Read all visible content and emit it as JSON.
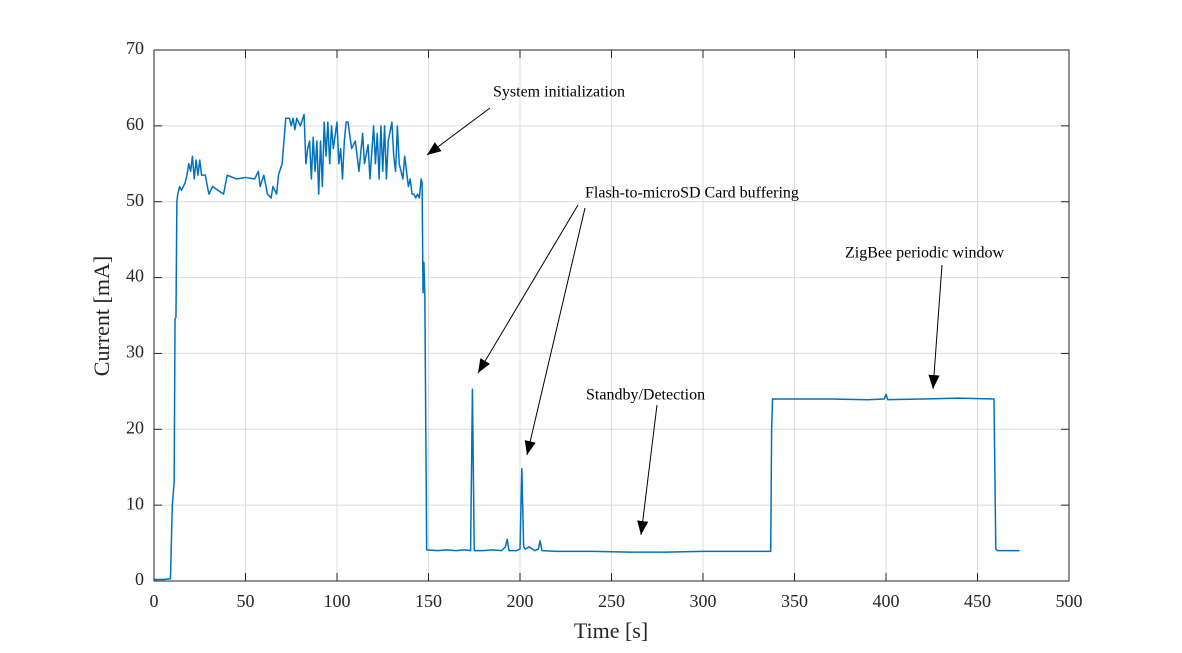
{
  "chart_data": {
    "type": "line",
    "xlabel": "Time [s]",
    "ylabel": "Current [mA]",
    "color": "#0072bd",
    "grid": true,
    "xlim": [
      0,
      500
    ],
    "xticks": [
      0,
      50,
      100,
      150,
      200,
      250,
      300,
      350,
      400,
      450,
      500
    ],
    "ylim": [
      0,
      70
    ],
    "yticks": [
      0,
      10,
      20,
      30,
      40,
      50,
      60,
      70
    ],
    "annotations": [
      "System initialization",
      "Flash-to-microSD Card buffering",
      "Standby/Detection",
      "ZigBee periodic window"
    ],
    "x": [
      0,
      5,
      9,
      10,
      11,
      11.5,
      12,
      12.5,
      13,
      14,
      15,
      17,
      18,
      19,
      20,
      21,
      22,
      23,
      24,
      25,
      26,
      28,
      30,
      32,
      35,
      38,
      40,
      45,
      50,
      55,
      57,
      58,
      60,
      62,
      64,
      65,
      67,
      68,
      70,
      72,
      74,
      75,
      76,
      77,
      78,
      80,
      82,
      83,
      84,
      85,
      86,
      87,
      88,
      89,
      90,
      91,
      92,
      93,
      94,
      95,
      96,
      97,
      98,
      100,
      101,
      102,
      103,
      104,
      105,
      106,
      108,
      110,
      112,
      114,
      115,
      117,
      118,
      120,
      121,
      122,
      123,
      124,
      125,
      126,
      127,
      128,
      130,
      131,
      132,
      133,
      134,
      136,
      137,
      139,
      140,
      141,
      142,
      143,
      144,
      145,
      146,
      146.5,
      147,
      147.5,
      148,
      149,
      155,
      160,
      165,
      170,
      173,
      174,
      175,
      180,
      185,
      190,
      192,
      193,
      194,
      198,
      200,
      201,
      202,
      203,
      205,
      208,
      210,
      211,
      212,
      220,
      240,
      260,
      280,
      300,
      320,
      337,
      337.5,
      338,
      350,
      370,
      390,
      399,
      400,
      401,
      420,
      440,
      459,
      460,
      461,
      470,
      473
    ],
    "values": [
      0.2,
      0.2,
      0.3,
      10,
      13,
      34.5,
      34.8,
      50,
      51,
      52,
      51.5,
      52.5,
      53.5,
      55,
      54,
      56,
      53,
      55.5,
      53.5,
      55.5,
      53.5,
      53.5,
      51,
      52,
      51.5,
      51,
      53.5,
      53,
      53.2,
      53,
      54,
      52,
      53.5,
      51,
      50.5,
      52,
      51,
      53.5,
      55,
      61,
      61,
      60,
      61,
      59.5,
      61,
      60,
      61.5,
      55,
      57,
      58,
      53,
      58.5,
      54,
      58,
      51,
      58,
      52,
      60.5,
      56,
      60.5,
      55,
      60,
      57,
      60.5,
      55,
      57,
      53,
      58,
      60.5,
      60.5,
      57,
      58,
      54,
      59,
      55,
      57.5,
      53,
      60,
      55,
      59,
      53,
      60,
      54,
      60,
      53,
      58,
      60.5,
      56,
      54,
      60,
      55,
      53,
      56,
      52,
      53,
      51,
      51,
      50.5,
      51,
      50.5,
      53,
      52.5,
      38,
      42,
      37.5,
      4.1,
      4,
      4.1,
      4,
      4.1,
      4,
      25.3,
      4,
      4,
      4.1,
      4,
      4.5,
      5.5,
      4,
      4,
      4.2,
      14.8,
      4.5,
      4.2,
      4.5,
      4,
      4.2,
      5.3,
      4,
      3.9,
      3.9,
      3.8,
      3.8,
      3.9,
      3.9,
      3.9,
      20,
      24,
      24,
      24,
      23.9,
      24,
      24.6,
      23.9,
      24,
      24.1,
      24,
      4.2,
      4,
      4,
      4
    ]
  }
}
